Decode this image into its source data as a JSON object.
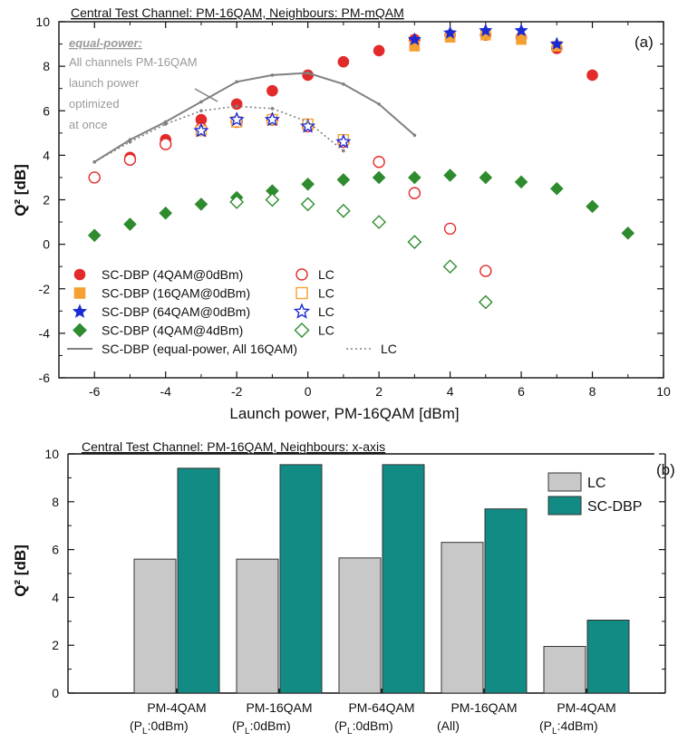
{
  "chart_data": [
    {
      "type": "scatter",
      "panel_label": "(a)",
      "title": "Central Test Channel: PM-16QAM, Neighbours: PM-mQAM",
      "annotation": {
        "head": "equal-power:",
        "lines": [
          "All channels PM-16QAM",
          "launch power",
          "optimized",
          "at once"
        ]
      },
      "xlabel": "Launch power, PM-16QAM [dBm]",
      "ylabel": "Q² [dB]",
      "xlim": [
        -7,
        10
      ],
      "ylim": [
        -6,
        10
      ],
      "xticks": [
        "-6",
        "-4",
        "-2",
        "0",
        "2",
        "4",
        "6",
        "8",
        "10"
      ],
      "yticks": [
        "-6",
        "-4",
        "-2",
        "0",
        "2",
        "4",
        "6",
        "8",
        "10"
      ],
      "grid": false,
      "legend_position": "bottom-left",
      "legend_rows": [
        {
          "label": "SC-DBP (4QAM@0dBm)",
          "label2": "LC"
        },
        {
          "label": "SC-DBP (16QAM@0dBm)",
          "label2": "LC"
        },
        {
          "label": "SC-DBP (64QAM@0dBm)",
          "label2": "LC"
        },
        {
          "label": "SC-DBP (4QAM@4dBm)",
          "label2": "LC"
        },
        {
          "label": "SC-DBP (equal-power, All 16QAM)",
          "label2": "LC"
        }
      ],
      "series": [
        {
          "name": "SC-DBP (4QAM@0dBm)",
          "marker": "circle",
          "filled": true,
          "color": "#e32a2a",
          "x": [
            -6,
            -5,
            -4,
            -3,
            -2,
            -1,
            0,
            1,
            2,
            3,
            4,
            5,
            6,
            7,
            8
          ],
          "y": [
            3.0,
            3.9,
            4.7,
            5.6,
            6.3,
            6.9,
            7.6,
            8.2,
            8.7,
            9.2,
            9.4,
            9.4,
            9.3,
            8.8,
            7.6
          ]
        },
        {
          "name": "LC",
          "marker": "circle",
          "filled": false,
          "color": "#e32a2a",
          "x": [
            -6,
            -5,
            -4,
            -3,
            -2,
            -1,
            0,
            1,
            2,
            3,
            4,
            5
          ],
          "y": [
            3.0,
            3.8,
            4.5,
            5.2,
            5.5,
            5.6,
            5.3,
            4.6,
            3.7,
            2.3,
            0.7,
            -1.2
          ]
        },
        {
          "name": "SC-DBP (16QAM@0dBm)",
          "marker": "square",
          "filled": true,
          "color": "#f5a033",
          "x": [
            3,
            4,
            5,
            6,
            7
          ],
          "y": [
            8.9,
            9.3,
            9.4,
            9.2,
            8.9
          ]
        },
        {
          "name": "LC",
          "marker": "square",
          "filled": false,
          "color": "#f5a033",
          "x": [
            -3,
            -2,
            -1,
            0,
            1
          ],
          "y": [
            5.1,
            5.5,
            5.6,
            5.4,
            4.7
          ]
        },
        {
          "name": "SC-DBP (64QAM@0dBm)",
          "marker": "star",
          "filled": true,
          "color": "#1a2bd6",
          "x": [
            3,
            4,
            5,
            6,
            7
          ],
          "y": [
            9.2,
            9.5,
            9.6,
            9.6,
            9.0
          ]
        },
        {
          "name": "LC",
          "marker": "star",
          "filled": false,
          "color": "#1a2bd6",
          "x": [
            -3,
            -2,
            -1,
            0,
            1
          ],
          "y": [
            5.1,
            5.6,
            5.6,
            5.3,
            4.6
          ]
        },
        {
          "name": "SC-DBP (4QAM@4dBm)",
          "marker": "diamond",
          "filled": true,
          "color": "#2e8b2e",
          "x": [
            -6,
            -5,
            -4,
            -3,
            -2,
            -1,
            0,
            1,
            2,
            3,
            4,
            5,
            6,
            7,
            8,
            9
          ],
          "y": [
            0.4,
            0.9,
            1.4,
            1.8,
            2.1,
            2.4,
            2.7,
            2.9,
            3.0,
            3.0,
            3.1,
            3.0,
            2.8,
            2.5,
            1.7,
            0.5
          ]
        },
        {
          "name": "LC",
          "marker": "diamond",
          "filled": false,
          "color": "#2e8b2e",
          "x": [
            -2,
            -1,
            0,
            1,
            2,
            3,
            4,
            5
          ],
          "y": [
            1.9,
            2.0,
            1.8,
            1.5,
            1.0,
            0.1,
            -1.0,
            -2.6
          ]
        },
        {
          "name": "SC-DBP (equal-power, All 16QAM)",
          "line": "solid",
          "color": "#808080",
          "x": [
            -6,
            -5,
            -4,
            -3,
            -2,
            -1,
            0,
            1,
            2,
            3
          ],
          "y": [
            3.7,
            4.7,
            5.5,
            6.4,
            7.3,
            7.6,
            7.7,
            7.2,
            6.3,
            4.9
          ]
        },
        {
          "name": "LC",
          "line": "dotted",
          "color": "#808080",
          "x": [
            -6,
            -5,
            -4,
            -3,
            -2,
            -1,
            0,
            1
          ],
          "y": [
            3.7,
            4.6,
            5.4,
            6.0,
            6.2,
            6.1,
            5.5,
            4.2
          ]
        }
      ]
    },
    {
      "type": "bar",
      "panel_label": "(b)",
      "title": "Central Test Channel: PM-16QAM, Neighbours: x-axis",
      "ylabel": "Q² [dB]",
      "ylim": [
        0,
        10
      ],
      "yticks": [
        "0",
        "2",
        "4",
        "6",
        "8",
        "10"
      ],
      "legend_position": "top-right",
      "categories": [
        {
          "line1": "PM-4QAM",
          "line2_pre": "(P",
          "line2_sub": "L",
          "line2_post": ":0dBm)"
        },
        {
          "line1": "PM-16QAM",
          "line2_pre": "(P",
          "line2_sub": "L",
          "line2_post": ":0dBm)"
        },
        {
          "line1": "PM-64QAM",
          "line2_pre": "(P",
          "line2_sub": "L",
          "line2_post": ":0dBm)"
        },
        {
          "line1": "PM-16QAM",
          "line2_pre": "(All)",
          "line2_sub": "",
          "line2_post": ""
        },
        {
          "line1": "PM-4QAM",
          "line2_pre": "(P",
          "line2_sub": "L",
          "line2_post": ":4dBm)"
        }
      ],
      "series": [
        {
          "name": "LC",
          "color": "#c8c8c8",
          "values": [
            5.6,
            5.6,
            5.65,
            6.3,
            1.95
          ]
        },
        {
          "name": "SC-DBP",
          "color": "#118b83",
          "values": [
            9.4,
            9.55,
            9.55,
            7.7,
            3.05
          ]
        }
      ]
    }
  ]
}
